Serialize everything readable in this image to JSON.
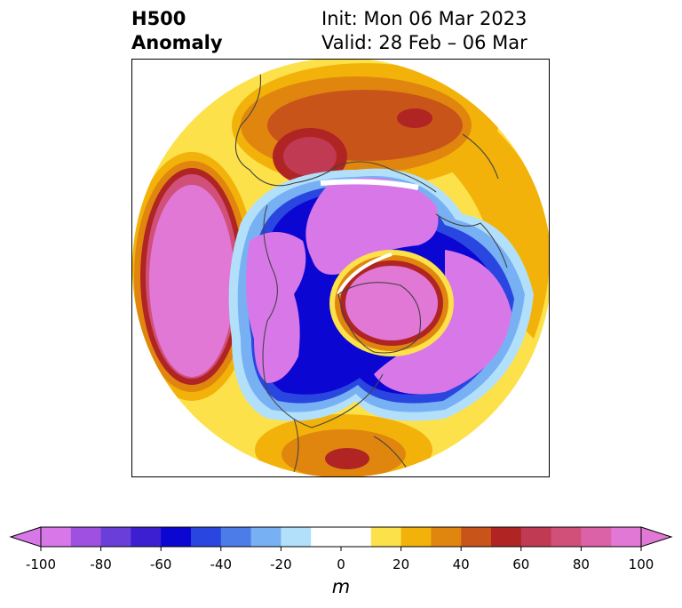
{
  "title": {
    "line1": "H500",
    "line2": "Anomaly"
  },
  "info": {
    "init": "Init: Mon 06 Mar 2023",
    "valid": "Valid: 28 Feb – 06 Mar"
  },
  "colorbar": {
    "ticks": [
      "-100",
      "-80",
      "-60",
      "-40",
      "-20",
      "0",
      "20",
      "40",
      "60",
      "80",
      "100"
    ],
    "unit": "m",
    "colors": [
      "#d878e8",
      "#a050e0",
      "#6a3ed8",
      "#3c1fd0",
      "#0c06d2",
      "#2a46e0",
      "#4c7ce8",
      "#78b0f4",
      "#b2e0fa",
      "#ffffff",
      "#ffffff",
      "#fde14a",
      "#f2b20a",
      "#e0860e",
      "#c8541a",
      "#b02424",
      "#c03a54",
      "#d0507a",
      "#dc62a8",
      "#e278d6"
    ],
    "under_color": "#d878e8",
    "over_color": "#e278d6"
  }
}
